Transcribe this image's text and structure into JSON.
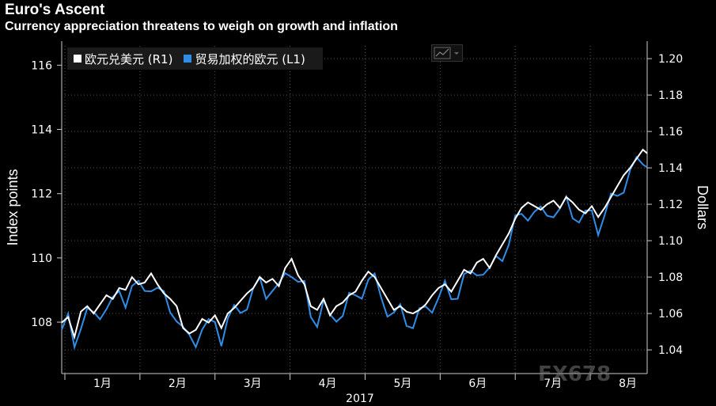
{
  "header": {
    "title": "Euro's Ascent",
    "subtitle": "Currency appreciation threatens to weigh on growth and inflation"
  },
  "watermark": "FX678",
  "colors": {
    "series1": "#ffffff",
    "series2": "#2f8ee8",
    "grid": "#555555",
    "background": "#000000"
  },
  "chart_data": {
    "type": "line",
    "xlabel": "2017",
    "ylabel_left": "Index points",
    "ylabel_right": "Dollars",
    "grid": true,
    "legend_position": "top-left",
    "x_ticks": [
      "1月",
      "2月",
      "3月",
      "4月",
      "5月",
      "6月",
      "7月",
      "8月"
    ],
    "y_left": {
      "ylim": [
        106.4,
        116.6
      ],
      "ticks": [
        "108",
        "110",
        "112",
        "114",
        "116"
      ]
    },
    "y_right": {
      "ylim": [
        1.027,
        1.207
      ],
      "ticks": [
        "1.04",
        "1.06",
        "1.08",
        "1.10",
        "1.12",
        "1.14",
        "1.16",
        "1.18",
        "1.20"
      ]
    },
    "series": [
      {
        "name": "欧元兑美元 (R1)",
        "axis": "right",
        "x": [
          0.0,
          0.6,
          1.2,
          1.8,
          2.4,
          3.0,
          3.6,
          4.2,
          4.8,
          5.4,
          6.0,
          6.6,
          7.2,
          7.8,
          8.4,
          9.0,
          9.6,
          10.2,
          10.8,
          11.4,
          12.0,
          12.6,
          13.2,
          13.8,
          14.4,
          15.0,
          15.6,
          16.2,
          16.8,
          17.4,
          18.0,
          18.6,
          19.2,
          19.8,
          20.4,
          21.0,
          21.6,
          22.2,
          22.8,
          23.4,
          24.0,
          24.6,
          25.2,
          25.8,
          26.4,
          27.0,
          27.6,
          28.2,
          28.8,
          29.4,
          30.0,
          30.6,
          31.2
        ],
        "values": [
          1.055,
          1.058,
          1.047,
          1.061,
          1.064,
          1.06,
          1.065,
          1.07,
          1.068,
          1.074,
          1.073,
          1.08,
          1.076,
          1.077,
          1.082,
          1.076,
          1.071,
          1.068,
          1.064,
          1.052,
          1.049,
          1.051,
          1.057,
          1.055,
          1.059,
          1.052,
          1.06,
          1.063,
          1.067,
          1.071,
          1.074,
          1.08,
          1.077,
          1.079,
          1.075,
          1.085,
          1.09,
          1.081,
          1.076,
          1.064,
          1.062,
          1.068,
          1.059,
          1.064,
          1.066,
          1.07,
          1.072,
          1.078,
          1.083,
          1.08,
          1.074,
          1.068,
          1.062
        ],
        "x2": [
          31.8,
          32.4,
          33.0,
          33.6,
          34.2,
          34.8,
          35.4,
          36.0,
          36.6,
          37.2,
          37.8,
          38.4,
          39.0,
          39.6,
          40.2,
          40.8,
          41.4,
          42.0,
          42.6,
          43.2,
          43.8,
          44.4,
          45.0,
          45.6,
          46.2,
          46.8,
          47.4,
          48.0,
          48.6,
          49.2,
          49.8,
          50.4,
          51.0,
          51.6,
          52.2,
          52.8,
          53.4,
          54.0,
          54.6,
          55.0
        ],
        "values2": [
          1.064,
          1.061,
          1.06,
          1.062,
          1.065,
          1.07,
          1.074,
          1.076,
          1.072,
          1.078,
          1.084,
          1.082,
          1.088,
          1.09,
          1.085,
          1.092,
          1.098,
          1.104,
          1.112,
          1.118,
          1.121,
          1.119,
          1.117,
          1.12,
          1.122,
          1.118,
          1.124,
          1.121,
          1.117,
          1.115,
          1.119,
          1.113,
          1.118,
          1.124,
          1.13,
          1.136,
          1.14,
          1.145,
          1.15,
          1.148
        ]
      },
      {
        "name": "贸易加权的欧元 (L1)",
        "axis": "left"
      }
    ]
  }
}
